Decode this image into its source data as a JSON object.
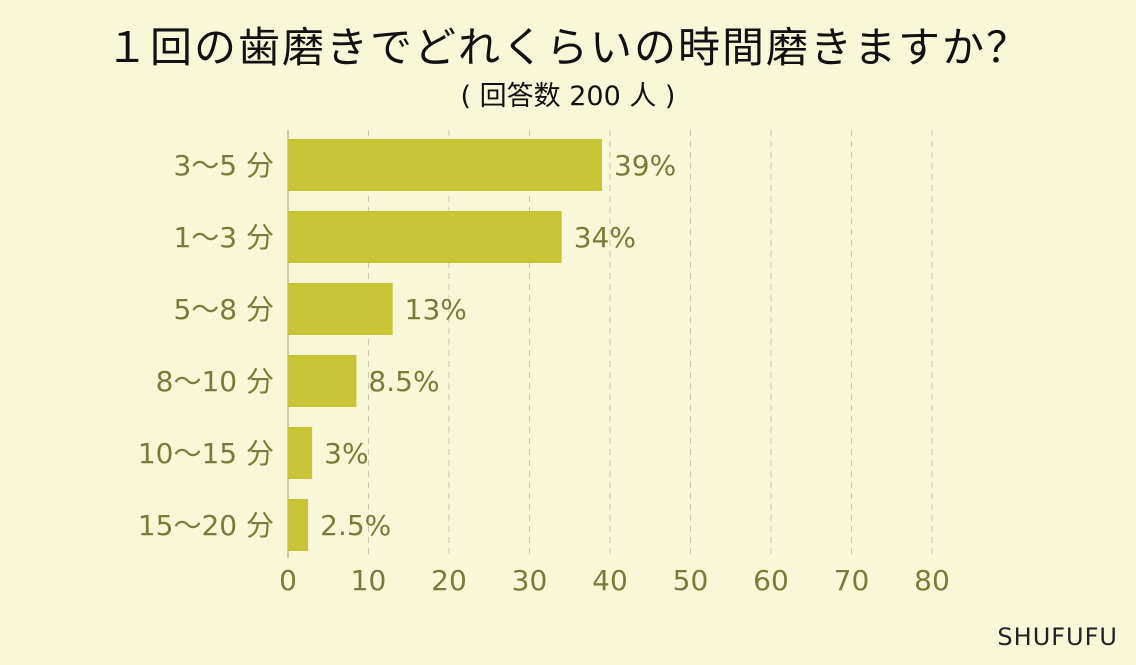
{
  "chart_data": {
    "type": "bar",
    "orientation": "horizontal",
    "title": "１回の歯磨きでどれくらいの時間磨きますか？",
    "subtitle": "( 回答数 200 人 )",
    "categories": [
      "3～5 分",
      "1～3 分",
      "5～8 分",
      "8～10 分",
      "10～15 分",
      "15～20 分"
    ],
    "values": [
      39,
      34,
      13,
      8.5,
      3,
      2.5
    ],
    "value_labels": [
      "39%",
      "34%",
      "13%",
      "8.5%",
      "3%",
      "2.5%"
    ],
    "xlim": [
      0,
      80
    ],
    "xticks": [
      0,
      10,
      20,
      30,
      40,
      50,
      60,
      70,
      80
    ],
    "grid": "vertical dashed",
    "legend": "none",
    "bar_color": "#c9c435"
  },
  "brand": "SHUFUFU"
}
